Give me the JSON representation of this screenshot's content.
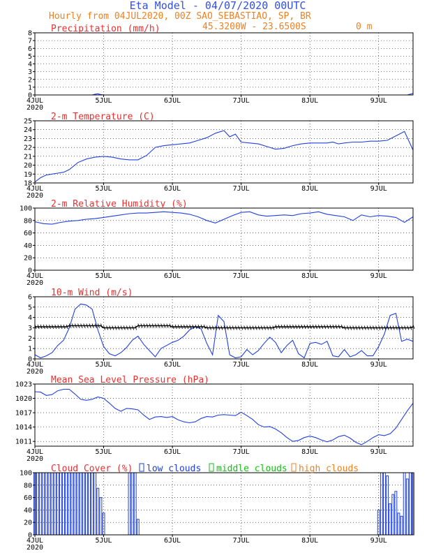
{
  "header": {
    "title": "Eta Model - 04/07/2020 00UTC",
    "subtitle": "Hourly from 04JUL2020, 00Z  SAO_SEBASTIAO, SP, BR",
    "coords": "45.3200W - 23.6500S",
    "elevation": "0  m",
    "title_color": "#3050e0",
    "subtitle_color": "#f08020"
  },
  "x_axis": {
    "labels": [
      "4JUL",
      "5JUL",
      "6JUL",
      "7JUL",
      "8JUL",
      "9JUL"
    ],
    "year_label": "2020",
    "hours_range": [
      0,
      132
    ]
  },
  "chart_data": [
    {
      "id": "precip",
      "type": "line",
      "title": "Precipitation (mm/h)",
      "title_color": "#e83030",
      "ylim": [
        0,
        8
      ],
      "yticks": [
        0,
        1,
        2,
        3,
        4,
        5,
        6,
        7,
        8
      ],
      "series": [
        {
          "name": "precipitation",
          "color": "#2040e0",
          "x": [
            0,
            20,
            21,
            22,
            23,
            24,
            130,
            131,
            132
          ],
          "y": [
            0,
            0,
            0.1,
            0.15,
            0.05,
            0,
            0,
            0.1,
            0.2
          ]
        }
      ]
    },
    {
      "id": "temp",
      "type": "line",
      "title": "2-m Temperature (C)",
      "title_color": "#e83030",
      "ylim": [
        18,
        25
      ],
      "yticks": [
        18,
        19,
        20,
        21,
        22,
        23,
        24,
        25
      ],
      "series": [
        {
          "name": "temperature",
          "color": "#2040e0",
          "x": [
            0,
            2,
            4,
            6,
            8,
            10,
            12,
            15,
            18,
            21,
            24,
            27,
            30,
            33,
            36,
            39,
            42,
            45,
            48,
            51,
            54,
            57,
            60,
            63,
            66,
            68,
            70,
            72,
            75,
            78,
            81,
            84,
            87,
            90,
            93,
            96,
            99,
            102,
            104,
            106,
            108,
            111,
            114,
            117,
            120,
            123,
            126,
            129,
            132
          ],
          "y": [
            18.1,
            18.6,
            18.9,
            19.0,
            19.1,
            19.2,
            19.5,
            20.3,
            20.7,
            20.9,
            21.0,
            20.9,
            20.7,
            20.6,
            20.6,
            21.1,
            22.0,
            22.2,
            22.3,
            22.4,
            22.5,
            22.8,
            23.1,
            23.6,
            23.9,
            23.2,
            23.5,
            22.6,
            22.5,
            22.4,
            22.1,
            21.8,
            21.9,
            22.2,
            22.4,
            22.5,
            22.5,
            22.5,
            22.6,
            22.4,
            22.5,
            22.6,
            22.6,
            22.7,
            22.7,
            22.8,
            23.3,
            23.8,
            21.7
          ]
        }
      ]
    },
    {
      "id": "rh",
      "type": "line",
      "title": "2-m Relative Humidity (%)",
      "title_color": "#e83030",
      "ylim": [
        0,
        100
      ],
      "yticks": [
        0,
        20,
        40,
        60,
        80,
        100
      ],
      "series": [
        {
          "name": "relative humidity",
          "color": "#2040e0",
          "x": [
            0,
            3,
            6,
            9,
            12,
            15,
            18,
            21,
            24,
            27,
            30,
            33,
            36,
            39,
            42,
            45,
            48,
            51,
            54,
            57,
            60,
            63,
            66,
            69,
            72,
            75,
            78,
            81,
            84,
            87,
            90,
            93,
            96,
            99,
            102,
            105,
            108,
            111,
            114,
            117,
            120,
            123,
            126,
            129,
            132
          ],
          "y": [
            78,
            75,
            74,
            77,
            79,
            80,
            82,
            83,
            85,
            87,
            89,
            91,
            92,
            92,
            93,
            94,
            93,
            92,
            90,
            86,
            80,
            76,
            82,
            88,
            93,
            94,
            89,
            87,
            88,
            89,
            88,
            91,
            92,
            94,
            90,
            88,
            86,
            80,
            89,
            86,
            88,
            87,
            85,
            77,
            86
          ]
        }
      ]
    },
    {
      "id": "wind",
      "type": "line",
      "title": "10-m Wind (m/s)",
      "title_color": "#e83030",
      "ylim": [
        0,
        6
      ],
      "yticks": [
        0,
        1,
        2,
        3,
        4,
        5,
        6
      ],
      "series": [
        {
          "name": "wind speed",
          "color": "#2040e0",
          "x": [
            0,
            2,
            4,
            6,
            8,
            10,
            12,
            14,
            16,
            18,
            20,
            22,
            24,
            26,
            28,
            30,
            32,
            34,
            36,
            38,
            40,
            42,
            44,
            46,
            48,
            50,
            52,
            54,
            56,
            58,
            60,
            62,
            64,
            66,
            68,
            70,
            72,
            74,
            76,
            78,
            80,
            82,
            84,
            86,
            88,
            90,
            92,
            94,
            96,
            98,
            100,
            102,
            104,
            106,
            108,
            110,
            112,
            114,
            116,
            118,
            120,
            122,
            124,
            126,
            128,
            130,
            132
          ],
          "y": [
            0.4,
            0.1,
            0.3,
            0.6,
            1.3,
            1.8,
            3.0,
            4.8,
            5.3,
            5.2,
            4.8,
            2.8,
            1.2,
            0.5,
            0.3,
            0.6,
            1.1,
            1.8,
            2.2,
            1.4,
            0.8,
            0.2,
            1.0,
            1.3,
            1.6,
            1.8,
            2.2,
            2.8,
            3.1,
            2.9,
            1.5,
            0.4,
            4.2,
            3.6,
            0.4,
            0.1,
            0.2,
            0.9,
            0.4,
            0.8,
            1.5,
            2.1,
            1.6,
            0.6,
            1.3,
            1.8,
            0.5,
            0.1,
            1.5,
            1.6,
            1.4,
            1.7,
            0.3,
            0.2,
            0.9,
            0.2,
            0.4,
            0.8,
            0.3,
            0.3,
            1.2,
            2.4,
            4.2,
            4.4,
            1.7,
            1.9,
            1.7
          ]
        },
        {
          "name": "wind barbs",
          "color": "#000000",
          "x": [
            0,
            12,
            24,
            36,
            48,
            60,
            72,
            84,
            96,
            108,
            120,
            132
          ],
          "y": [
            3.1,
            3.2,
            3.0,
            3.2,
            3.1,
            3.0,
            3.0,
            3.1,
            3.1,
            3.0,
            3.0,
            3.1
          ]
        }
      ]
    },
    {
      "id": "mslp",
      "type": "line",
      "title": "Mean Sea Level Pressure (hPa)",
      "title_color": "#e83030",
      "ylim": [
        1010,
        1023
      ],
      "yticks": [
        1011,
        1014,
        1017,
        1020,
        1023
      ],
      "series": [
        {
          "name": "pressure",
          "color": "#2040e0",
          "x": [
            0,
            2,
            4,
            6,
            8,
            10,
            12,
            14,
            16,
            18,
            20,
            22,
            24,
            26,
            28,
            30,
            32,
            34,
            36,
            38,
            40,
            42,
            44,
            46,
            48,
            50,
            52,
            54,
            56,
            58,
            60,
            62,
            64,
            66,
            68,
            70,
            72,
            74,
            76,
            78,
            80,
            82,
            84,
            86,
            88,
            90,
            92,
            94,
            96,
            98,
            100,
            102,
            104,
            106,
            108,
            110,
            112,
            114,
            116,
            118,
            120,
            122,
            124,
            126,
            128,
            130,
            132
          ],
          "y": [
            1021.4,
            1021.3,
            1020.6,
            1020.8,
            1021.6,
            1021.9,
            1021.9,
            1020.9,
            1019.8,
            1019.6,
            1019.8,
            1020.3,
            1020.0,
            1019.0,
            1017.9,
            1017.3,
            1017.9,
            1017.8,
            1017.6,
            1016.5,
            1015.6,
            1016.1,
            1016.2,
            1016.0,
            1016.2,
            1015.5,
            1015.1,
            1014.9,
            1015.1,
            1015.8,
            1016.2,
            1016.1,
            1016.5,
            1016.6,
            1016.5,
            1016.4,
            1017.1,
            1016.4,
            1015.6,
            1014.5,
            1014.0,
            1014.1,
            1013.6,
            1012.8,
            1011.8,
            1011.0,
            1011.2,
            1011.8,
            1012.1,
            1011.8,
            1011.3,
            1010.9,
            1011.3,
            1012.0,
            1012.3,
            1011.7,
            1010.8,
            1010.3,
            1011.0,
            1011.8,
            1012.4,
            1012.2,
            1012.6,
            1013.8,
            1015.6,
            1017.4,
            1019.0
          ]
        }
      ]
    },
    {
      "id": "cloud",
      "type": "bar",
      "title": "Cloud Cover (%)",
      "title_color": "#e83030",
      "ylim": [
        0,
        100
      ],
      "yticks": [
        0,
        20,
        40,
        60,
        80,
        100
      ],
      "legend": [
        {
          "label": "low clouds",
          "color": "#2040e0"
        },
        {
          "label": "middle clouds",
          "color": "#10c010"
        },
        {
          "label": "high clouds",
          "color": "#f08020"
        }
      ],
      "series": [
        {
          "name": "low clouds",
          "color": "#2040e0",
          "x": [
            0,
            1,
            2,
            3,
            4,
            5,
            6,
            7,
            8,
            9,
            10,
            11,
            12,
            13,
            14,
            15,
            16,
            17,
            18,
            19,
            20,
            21,
            22,
            23,
            24,
            33,
            34,
            35,
            36,
            120,
            121,
            122,
            123,
            124,
            125,
            126,
            127,
            128,
            129,
            130,
            131,
            132
          ],
          "y": [
            100,
            100,
            100,
            100,
            100,
            100,
            100,
            100,
            100,
            100,
            100,
            100,
            100,
            100,
            100,
            100,
            100,
            100,
            100,
            100,
            100,
            100,
            75,
            60,
            35,
            100,
            100,
            100,
            25,
            40,
            100,
            100,
            95,
            50,
            65,
            70,
            35,
            30,
            100,
            90,
            100,
            100
          ]
        }
      ]
    }
  ]
}
